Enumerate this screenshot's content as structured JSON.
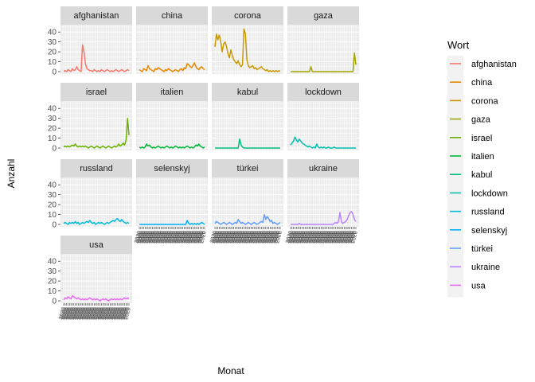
{
  "chart_data": {
    "type": "line",
    "facets": true,
    "xlabel": "Monat",
    "ylabel": "Anzahl",
    "ylim": [
      0,
      45
    ],
    "y_ticks": [
      0,
      10,
      20,
      30,
      40
    ],
    "x_tick_label": "2020",
    "grid": true,
    "legend_title": "Wort",
    "legend_position": "right",
    "series": [
      {
        "name": "afghanistan",
        "color": "#F8766D",
        "values": [
          0,
          1,
          0,
          2,
          1,
          0,
          3,
          1,
          2,
          5,
          2,
          1,
          0,
          27,
          20,
          8,
          3,
          2,
          1,
          1,
          0,
          2,
          1,
          0,
          1,
          0,
          2,
          1,
          0,
          1,
          2,
          1,
          0,
          1,
          0,
          1,
          2,
          1,
          0,
          1,
          2,
          1,
          0,
          1,
          2,
          1
        ]
      },
      {
        "name": "china",
        "color": "#E58700",
        "values": [
          2,
          1,
          0,
          3,
          2,
          1,
          6,
          3,
          2,
          1,
          0,
          3,
          2,
          4,
          3,
          2,
          1,
          0,
          2,
          1,
          3,
          2,
          1,
          0,
          1,
          2,
          1,
          0,
          2,
          3,
          1,
          4,
          3,
          8,
          7,
          5,
          4,
          6,
          9,
          5,
          3,
          2,
          4,
          5,
          3,
          2
        ]
      },
      {
        "name": "corona",
        "color": "#C99800",
        "values": [
          25,
          38,
          32,
          37,
          30,
          20,
          28,
          30,
          25,
          18,
          14,
          22,
          16,
          12,
          10,
          8,
          11,
          7,
          5,
          7,
          43,
          38,
          12,
          6,
          4,
          5,
          6,
          3,
          4,
          2,
          3,
          4,
          5,
          3,
          2,
          1,
          2,
          0,
          1,
          0,
          1,
          0,
          1,
          0,
          1,
          0
        ]
      },
      {
        "name": "gaza",
        "color": "#A3A500",
        "values": [
          0,
          0,
          0,
          0,
          0,
          0,
          0,
          0,
          0,
          0,
          0,
          0,
          0,
          0,
          5,
          0,
          0,
          0,
          0,
          0,
          0,
          0,
          0,
          0,
          0,
          0,
          0,
          0,
          0,
          0,
          0,
          0,
          0,
          0,
          0,
          0,
          0,
          0,
          0,
          0,
          0,
          0,
          0,
          0,
          19,
          7
        ]
      },
      {
        "name": "israel",
        "color": "#6BB100",
        "values": [
          1,
          2,
          1,
          2,
          1,
          2,
          3,
          2,
          4,
          2,
          1,
          2,
          1,
          2,
          1,
          2,
          1,
          0,
          1,
          2,
          1,
          0,
          1,
          2,
          1,
          0,
          1,
          2,
          1,
          0,
          1,
          2,
          1,
          0,
          1,
          2,
          1,
          2,
          4,
          2,
          3,
          5,
          3,
          8,
          30,
          13
        ]
      },
      {
        "name": "italien",
        "color": "#00BA38",
        "values": [
          1,
          0,
          1,
          0,
          1,
          4,
          2,
          3,
          1,
          0,
          1,
          0,
          1,
          2,
          1,
          0,
          1,
          0,
          1,
          2,
          1,
          0,
          1,
          0,
          1,
          2,
          1,
          0,
          1,
          0,
          1,
          0,
          1,
          2,
          1,
          0,
          1,
          0,
          1,
          3,
          2,
          4,
          2,
          1,
          0,
          1
        ]
      },
      {
        "name": "kabul",
        "color": "#00BF7D",
        "values": [
          0,
          0,
          0,
          0,
          0,
          0,
          0,
          0,
          0,
          0,
          0,
          0,
          0,
          0,
          0,
          0,
          0,
          9,
          3,
          1,
          0,
          0,
          0,
          0,
          0,
          0,
          0,
          0,
          0,
          0,
          0,
          0,
          0,
          0,
          0,
          0,
          0,
          0,
          0,
          0,
          0,
          0,
          0,
          0,
          0,
          0
        ]
      },
      {
        "name": "lockdown",
        "color": "#00C0AF",
        "values": [
          3,
          5,
          7,
          11,
          8,
          6,
          9,
          7,
          5,
          4,
          3,
          2,
          1,
          2,
          1,
          0,
          1,
          0,
          4,
          1,
          0,
          1,
          0,
          1,
          0,
          0,
          1,
          0,
          0,
          0,
          1,
          0,
          0,
          0,
          0,
          0,
          0,
          0,
          0,
          0,
          0,
          0,
          0,
          0,
          0,
          0
        ]
      },
      {
        "name": "russland",
        "color": "#00BCD8",
        "values": [
          1,
          2,
          1,
          0,
          2,
          1,
          2,
          1,
          3,
          1,
          2,
          0,
          1,
          2,
          1,
          2,
          3,
          2,
          4,
          2,
          1,
          2,
          0,
          1,
          2,
          1,
          2,
          1,
          0,
          1,
          2,
          1,
          2,
          3,
          4,
          3,
          5,
          6,
          4,
          3,
          5,
          3,
          2,
          1,
          2,
          1
        ]
      },
      {
        "name": "selenskyj",
        "color": "#00B0F6",
        "values": [
          0,
          0,
          0,
          0,
          0,
          0,
          0,
          0,
          0,
          0,
          0,
          0,
          0,
          0,
          0,
          0,
          0,
          0,
          0,
          0,
          0,
          0,
          0,
          0,
          0,
          0,
          0,
          0,
          0,
          0,
          0,
          0,
          0,
          4,
          1,
          0,
          1,
          0,
          1,
          0,
          1,
          0,
          1,
          2,
          1,
          0
        ]
      },
      {
        "name": "türkei",
        "color": "#619CFF",
        "values": [
          1,
          3,
          2,
          1,
          0,
          1,
          2,
          1,
          0,
          1,
          2,
          1,
          0,
          1,
          2,
          1,
          5,
          3,
          1,
          2,
          1,
          0,
          1,
          2,
          1,
          0,
          1,
          2,
          1,
          0,
          1,
          2,
          3,
          2,
          10,
          5,
          8,
          6,
          3,
          4,
          1,
          2,
          1,
          0,
          1,
          2
        ]
      },
      {
        "name": "ukraine",
        "color": "#B983FF",
        "values": [
          0,
          0,
          0,
          0,
          0,
          0,
          1,
          0,
          0,
          0,
          0,
          0,
          0,
          0,
          0,
          0,
          0,
          0,
          0,
          0,
          0,
          0,
          0,
          0,
          0,
          0,
          0,
          0,
          0,
          0,
          1,
          2,
          1,
          3,
          12,
          3,
          1,
          2,
          3,
          5,
          9,
          12,
          13,
          10,
          5,
          3
        ]
      },
      {
        "name": "usa",
        "color": "#E76BF3",
        "values": [
          1,
          3,
          2,
          4,
          3,
          2,
          5,
          4,
          3,
          2,
          3,
          2,
          1,
          2,
          1,
          2,
          1,
          2,
          3,
          2,
          1,
          2,
          1,
          2,
          1,
          0,
          1,
          2,
          1,
          2,
          1,
          0,
          1,
          2,
          1,
          2,
          1,
          2,
          1,
          2,
          1,
          2,
          3,
          2,
          3,
          2
        ]
      }
    ]
  }
}
